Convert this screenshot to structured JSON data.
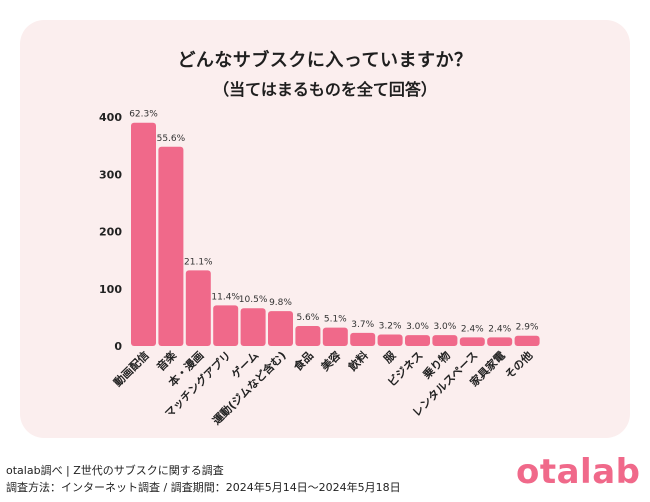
{
  "chart_data": {
    "type": "bar",
    "title": "どんなサブスクに入っていますか？",
    "subtitle": "（当てはまるものを全て回答）",
    "categories": [
      "動画配信",
      "音楽",
      "本・漫画",
      "マッチングアプリ",
      "ゲーム",
      "運動(ジムなど含む)",
      "食品",
      "美容",
      "飲料",
      "服",
      "ビジネス",
      "乗り物",
      "レンタルスペース",
      "家具家電",
      "その他"
    ],
    "values": [
      390,
      348,
      132,
      71,
      66,
      61,
      35,
      32,
      23,
      20,
      19,
      19,
      15,
      15,
      18
    ],
    "data_labels": [
      "62.3%",
      "55.6%",
      "21.1%",
      "11.4%",
      "10.5%",
      "9.8%",
      "5.6%",
      "5.1%",
      "3.7%",
      "3.2%",
      "3.0%",
      "3.0%",
      "2.4%",
      "2.4%",
      "2.9%"
    ],
    "yticks": [
      0,
      100,
      200,
      300,
      400
    ],
    "ylim": [
      0,
      400
    ],
    "bar_color": "#f0698a",
    "grid": false
  },
  "footer": {
    "line1": "otalab調べ | Z世代のサブスクに関する調査",
    "line2": "調査方法：インターネット調査 / 調査期間：2024年5月14日〜2024年5月18日"
  },
  "logo": {
    "text": "otalab",
    "color": "#f0698a"
  }
}
